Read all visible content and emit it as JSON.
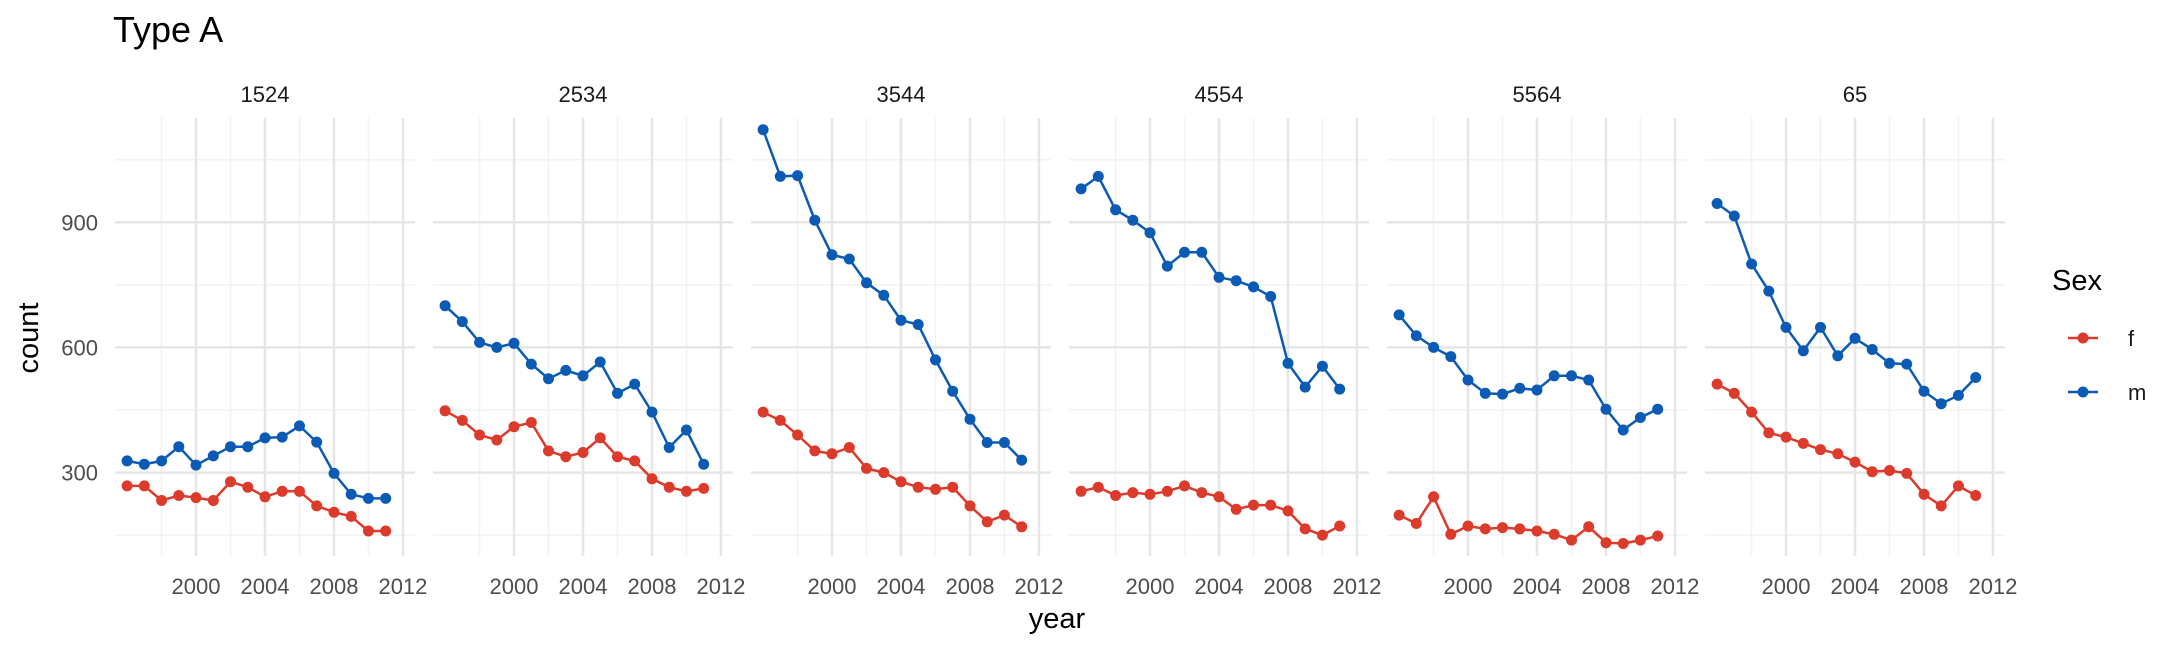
{
  "chart_data": {
    "type": "line",
    "title": "Type A",
    "xlabel": "year",
    "ylabel": "count",
    "legend": {
      "title": "Sex",
      "placement": "right"
    },
    "x": [
      1996,
      1997,
      1998,
      1999,
      2000,
      2001,
      2002,
      2003,
      2004,
      2005,
      2006,
      2007,
      2008,
      2009,
      2010,
      2011,
      2012
    ],
    "x_ticks": [
      2000,
      2004,
      2008,
      2012
    ],
    "y_ticks": [
      300,
      600,
      900
    ],
    "xlim": [
      1995.3,
      2012.7
    ],
    "ylim": [
      100,
      1150
    ],
    "grid": true,
    "colors": {
      "f": "#dc3a2a",
      "m": "#0b5bb5",
      "grid_major": "#e6e6e6",
      "grid_minor": "#f2f2f2",
      "text": "#000000",
      "tick_text": "#4d4d4d"
    },
    "series_names": [
      "f",
      "m"
    ],
    "facets": [
      {
        "label": "1524",
        "series": [
          {
            "name": "f",
            "values": [
              268,
              268,
              233,
              245,
              240,
              233,
              278,
              265,
              242,
              255,
              255,
              220,
              205,
              195,
              160,
              160,
              null
            ]
          },
          {
            "name": "m",
            "values": [
              328,
              320,
              328,
              362,
              318,
              340,
              362,
              362,
              383,
              385,
              412,
              373,
              298,
              248,
              238,
              238,
              null
            ]
          }
        ]
      },
      {
        "label": "2534",
        "series": [
          {
            "name": "f",
            "values": [
              448,
              425,
              390,
              378,
              410,
              420,
              352,
              338,
              348,
              383,
              338,
              328,
              285,
              265,
              255,
              262,
              null
            ]
          },
          {
            "name": "m",
            "values": [
              700,
              662,
              612,
              600,
              610,
              560,
              525,
              545,
              532,
              565,
              490,
              512,
              445,
              360,
              402,
              320,
              null
            ]
          }
        ]
      },
      {
        "label": "3544",
        "series": [
          {
            "name": "f",
            "values": [
              445,
              425,
              390,
              352,
              345,
              360,
              310,
              300,
              278,
              265,
              260,
              265,
              220,
              182,
              198,
              170,
              null
            ]
          },
          {
            "name": "m",
            "values": [
              1122,
              1010,
              1012,
              905,
              822,
              812,
              755,
              725,
              665,
              655,
              570,
              495,
              428,
              372,
              372,
              330,
              null
            ]
          }
        ]
      },
      {
        "label": "4554",
        "series": [
          {
            "name": "f",
            "values": [
              255,
              265,
              245,
              252,
              248,
              255,
              268,
              252,
              242,
              212,
              222,
              222,
              208,
              165,
              150,
              172,
              null
            ]
          },
          {
            "name": "m",
            "values": [
              980,
              1010,
              930,
              905,
              875,
              795,
              828,
              828,
              768,
              760,
              745,
              722,
              562,
              505,
              555,
              500,
              null
            ]
          }
        ]
      },
      {
        "label": "5564",
        "series": [
          {
            "name": "f",
            "values": [
              198,
              178,
              242,
              152,
              172,
              165,
              168,
              165,
              160,
              152,
              138,
              170,
              132,
              130,
              138,
              148,
              null
            ]
          },
          {
            "name": "m",
            "values": [
              678,
              628,
              600,
              578,
              522,
              490,
              488,
              502,
              498,
              532,
              532,
              522,
              452,
              402,
              432,
              452,
              null
            ]
          }
        ]
      },
      {
        "label": "65",
        "series": [
          {
            "name": "f",
            "values": [
              512,
              490,
              445,
              395,
              385,
              370,
              355,
              345,
              325,
              302,
              305,
              298,
              248,
              220,
              268,
              245,
              null
            ]
          },
          {
            "name": "m",
            "values": [
              945,
              915,
              800,
              735,
              648,
              592,
              648,
              580,
              622,
              595,
              562,
              560,
              495,
              465,
              485,
              528,
              null
            ]
          }
        ]
      }
    ]
  }
}
